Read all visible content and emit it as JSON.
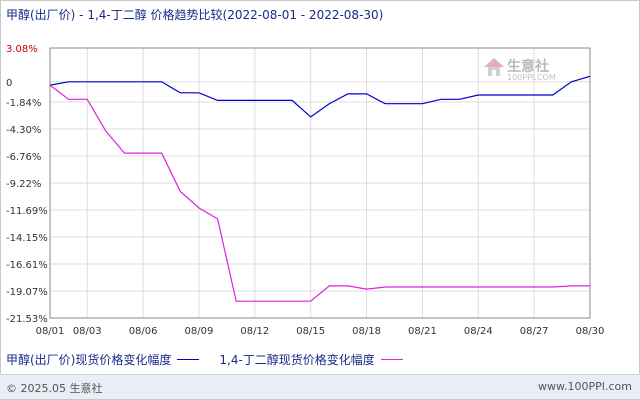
{
  "title": "甲醇(出厂价) - 1,4-丁二醇 价格趋势比较(2022-08-01 - 2022-08-30)",
  "watermark": {
    "name": "生意社",
    "url": "100PPI.COM"
  },
  "footer": {
    "copyright": "© 2025.05 生意社",
    "site": "www.100PPI.com"
  },
  "colors": {
    "series1": "#0000cc",
    "series2": "#e020e0",
    "grid": "#dddddd",
    "positive_tick": "#cc0000"
  },
  "chart_data": {
    "type": "line",
    "ytick_labels": [
      "3.08%",
      "0",
      "-1.84%",
      "-4.30%",
      "-6.76%",
      "-9.22%",
      "-11.69%",
      "-14.15%",
      "-16.61%",
      "-19.07%",
      "-21.53%"
    ],
    "yticks": [
      3.08,
      0,
      -1.84,
      -4.3,
      -6.76,
      -9.22,
      -11.69,
      -14.15,
      -16.61,
      -19.07,
      -21.53
    ],
    "ylim": [
      -21.53,
      3.08
    ],
    "x_start": "08/01",
    "x_end": "08/30",
    "xtick_labels": [
      "08/01",
      "08/03",
      "08/06",
      "08/09",
      "08/12",
      "08/15",
      "08/18",
      "08/21",
      "08/24",
      "08/27",
      "08/30"
    ],
    "xtick_days": [
      1,
      3,
      6,
      9,
      12,
      15,
      18,
      21,
      24,
      27,
      30
    ],
    "grid": true,
    "legend_position": "bottom",
    "series": [
      {
        "name": "甲醇(出厂价)现货价格变化幅度",
        "color": "#0000cc",
        "points": [
          [
            1,
            -0.3
          ],
          [
            2,
            0
          ],
          [
            3,
            0
          ],
          [
            5,
            0
          ],
          [
            6,
            0
          ],
          [
            7,
            0
          ],
          [
            8,
            -1.0
          ],
          [
            9,
            -1.0
          ],
          [
            10,
            -1.7
          ],
          [
            12,
            -1.7
          ],
          [
            14,
            -1.7
          ],
          [
            15,
            -3.2
          ],
          [
            16,
            -2.0
          ],
          [
            17,
            -1.1
          ],
          [
            18,
            -1.1
          ],
          [
            19,
            -2.0
          ],
          [
            20,
            -2.0
          ],
          [
            21,
            -2.0
          ],
          [
            22,
            -1.6
          ],
          [
            23,
            -1.6
          ],
          [
            24,
            -1.2
          ],
          [
            25,
            -1.2
          ],
          [
            26,
            -1.2
          ],
          [
            27,
            -1.2
          ],
          [
            28,
            -1.2
          ],
          [
            29,
            0
          ],
          [
            30,
            0.5
          ]
        ]
      },
      {
        "name": "1,4-丁二醇现货价格变化幅度",
        "color": "#e020e0",
        "points": [
          [
            1,
            -0.3
          ],
          [
            2,
            -1.6
          ],
          [
            3,
            -1.6
          ],
          [
            4,
            -4.5
          ],
          [
            5,
            -6.5
          ],
          [
            6,
            -6.5
          ],
          [
            7,
            -6.5
          ],
          [
            8,
            -10.0
          ],
          [
            9,
            -11.5
          ],
          [
            10,
            -12.5
          ],
          [
            11,
            -20.0
          ],
          [
            12,
            -20.0
          ],
          [
            13,
            -20.0
          ],
          [
            14,
            -20.0
          ],
          [
            15,
            -20.0
          ],
          [
            16,
            -18.6
          ],
          [
            17,
            -18.6
          ],
          [
            18,
            -18.9
          ],
          [
            19,
            -18.7
          ],
          [
            20,
            -18.7
          ],
          [
            25,
            -18.7
          ],
          [
            28,
            -18.7
          ],
          [
            29,
            -18.6
          ],
          [
            30,
            -18.6
          ]
        ]
      }
    ]
  }
}
